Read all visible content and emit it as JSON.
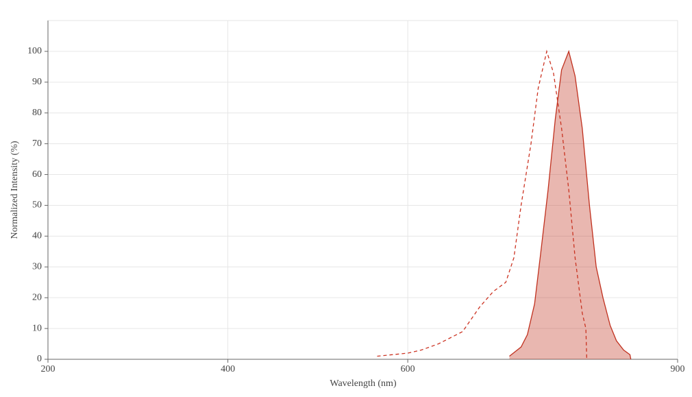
{
  "chart_data": {
    "type": "line",
    "x_label": "Wavelength (nm)",
    "y_label": "Normalized Intensity (%)",
    "xlim": [
      200,
      900
    ],
    "xticks": [
      200,
      400,
      600,
      900
    ],
    "ylim": [
      0,
      110
    ],
    "yticks": [
      0,
      10,
      20,
      30,
      40,
      50,
      60,
      70,
      80,
      90,
      100
    ],
    "grid": true,
    "series": [
      {
        "color": "#cc3322",
        "dash": true,
        "fill": false,
        "x": [
          566,
          600,
          615,
          634,
          661,
          680,
          695,
          709,
          718,
          726,
          737,
          745,
          754.5,
          762,
          771,
          779,
          786,
          794,
          798,
          799
        ],
        "values": [
          1,
          2,
          3,
          5,
          9,
          17,
          22,
          25,
          33,
          50,
          70,
          88,
          100,
          93,
          75,
          55,
          33,
          15,
          10,
          0
        ]
      },
      {
        "color": "#c0301e",
        "dash": false,
        "fill": true,
        "x": [
          713,
          726,
          733,
          741,
          748,
          756,
          764,
          771,
          779,
          786,
          794,
          802,
          809.5,
          817,
          825,
          832,
          840,
          847,
          848
        ],
        "values": [
          1,
          4,
          8,
          18,
          35,
          55,
          78,
          94,
          100,
          92,
          75,
          50,
          30,
          20,
          11,
          6,
          3,
          1.5,
          0
        ]
      }
    ]
  }
}
